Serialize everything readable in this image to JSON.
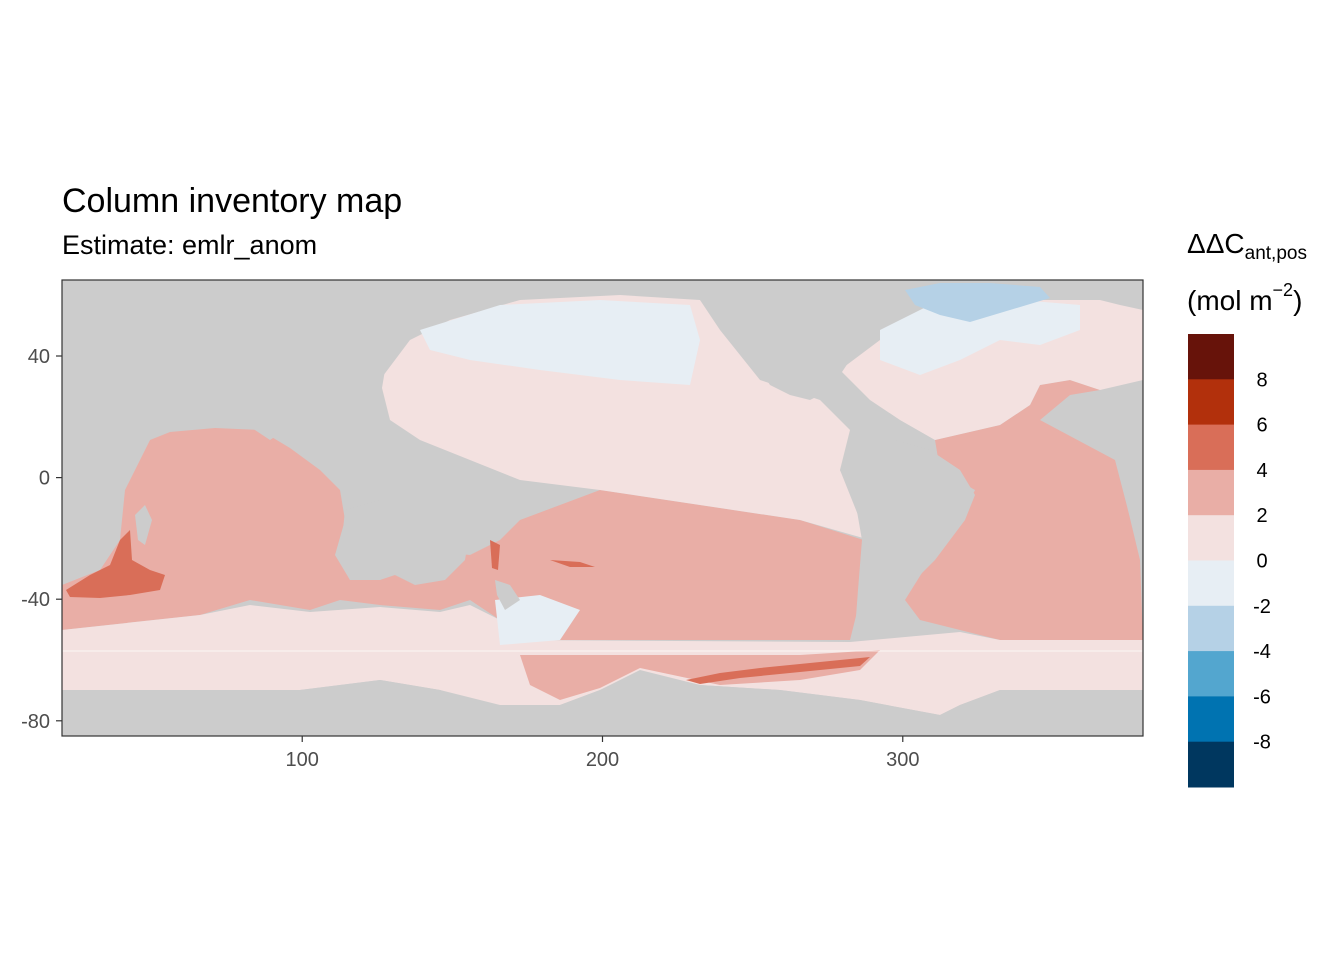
{
  "title": "Column inventory map",
  "subtitle": "Estimate: emlr_anom",
  "legend": {
    "title_main": "ΔΔC",
    "title_sub": "ant,pos",
    "unit_prefix": "(mol m",
    "unit_sup": "−2",
    "unit_suffix": ")",
    "bins": [
      {
        "range": [
          8,
          10
        ],
        "color": "#67130a"
      },
      {
        "range": [
          6,
          8
        ],
        "color": "#b2300c"
      },
      {
        "range": [
          4,
          6
        ],
        "color": "#d96e58"
      },
      {
        "range": [
          2,
          4
        ],
        "color": "#e9aea6"
      },
      {
        "range": [
          0,
          2
        ],
        "color": "#f3e1e0"
      },
      {
        "range": [
          -2,
          0
        ],
        "color": "#e7eef4"
      },
      {
        "range": [
          -4,
          -2
        ],
        "color": "#b5d1e6"
      },
      {
        "range": [
          -6,
          -4
        ],
        "color": "#53a6cf"
      },
      {
        "range": [
          -8,
          -6
        ],
        "color": "#0073b1"
      },
      {
        "range": [
          -10,
          -8
        ],
        "color": "#00375f"
      }
    ],
    "labels": [
      "8",
      "6",
      "4",
      "2",
      "0",
      "-2",
      "-4",
      "-6",
      "-8"
    ]
  },
  "chart_data": {
    "type": "heatmap",
    "title": "Column inventory map",
    "subtitle": "Estimate: emlr_anom",
    "xlabel": "",
    "ylabel": "",
    "xlim": [
      20,
      380
    ],
    "ylim": [
      -85,
      65
    ],
    "x_ticks": [
      100,
      200,
      300
    ],
    "y_ticks": [
      40,
      0,
      -40,
      -80
    ],
    "x_tick_labels": [
      "100",
      "200",
      "300"
    ],
    "y_tick_labels": [
      "40",
      "0",
      "-40",
      "-80"
    ],
    "land_color": "#cccccc",
    "legend_position": "right",
    "grid": false
  }
}
